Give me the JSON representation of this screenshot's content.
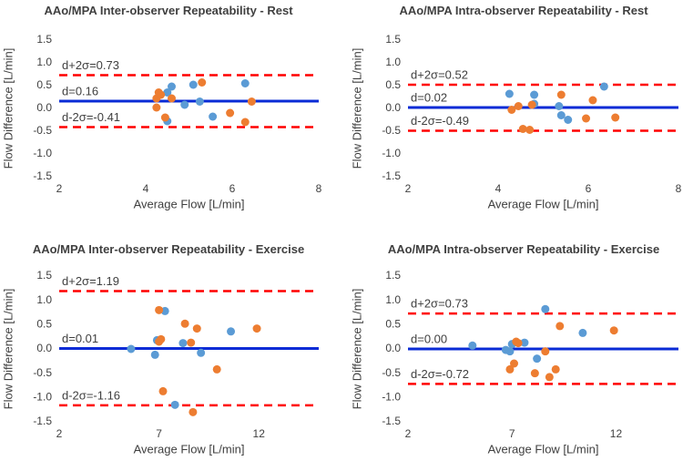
{
  "chart_data": [
    {
      "type": "scatter",
      "title": "AAo/MPA Inter-observer Repeatability - Rest",
      "xlabel": "Average Flow [L/min]",
      "ylabel": "Flow Difference [L/min]",
      "xlim": [
        2,
        8
      ],
      "xticks": [
        2,
        4,
        6,
        8
      ],
      "ylim": [
        -1.5,
        1.5
      ],
      "yticks": [
        -1.5,
        {
          "value": -1,
          "label": "-1.0"
        },
        -0.5,
        {
          "value": 0,
          "label": "0.0"
        },
        0.5,
        {
          "value": 1,
          "label": "1.0"
        },
        1.5
      ],
      "series": [
        {
          "color": "#5b9bd5",
          "x": [
            4.6,
            4.5,
            4.9,
            5.1,
            5.25,
            5.55,
            6.3,
            4.5
          ],
          "values": [
            0.48,
            0.35,
            0.08,
            0.52,
            0.15,
            -0.18,
            0.55,
            -0.28
          ]
        },
        {
          "color": "#ed7d31",
          "x": [
            4.3,
            4.25,
            4.25,
            4.45,
            4.6,
            5.3,
            5.95,
            6.3,
            6.45,
            4.35
          ],
          "values": [
            0.35,
            0.22,
            0.02,
            -0.2,
            0.22,
            0.57,
            -0.1,
            -0.3,
            0.15,
            0.3
          ]
        }
      ],
      "lines": [
        {
          "value": 0.73,
          "label": "d+2σ=0.73",
          "color": "#ff0000",
          "dashed": true
        },
        {
          "value": 0.16,
          "label": "d=0.16",
          "color": "#0a2bd6",
          "dashed": false
        },
        {
          "value": -0.41,
          "label": "d-2σ=-0.41",
          "color": "#ff0000",
          "dashed": true
        }
      ]
    },
    {
      "type": "scatter",
      "title": "AAo/MPA Intra-observer Repeatability - Rest",
      "xlabel": "Average Flow [L/min]",
      "ylabel": "Flow Difference [L/min]",
      "xlim": [
        2,
        8
      ],
      "xticks": [
        2,
        4,
        6,
        8
      ],
      "ylim": [
        -1.5,
        1.5
      ],
      "yticks": [
        -1.5,
        {
          "value": -1,
          "label": "-1.0"
        },
        -0.5,
        {
          "value": 0,
          "label": "0.0"
        },
        0.5,
        {
          "value": 1,
          "label": "1.0"
        },
        1.5
      ],
      "series": [
        {
          "color": "#5b9bd5",
          "x": [
            4.25,
            4.8,
            4.8,
            5.35,
            5.4,
            5.55,
            6.35
          ],
          "values": [
            0.32,
            0.3,
            0.1,
            0.05,
            -0.15,
            -0.25,
            0.48
          ]
        },
        {
          "color": "#ed7d31",
          "x": [
            4.3,
            4.45,
            4.55,
            4.7,
            4.75,
            5.4,
            5.95,
            6.1,
            6.6
          ],
          "values": [
            -0.03,
            0.05,
            -0.45,
            -0.47,
            0.08,
            0.3,
            -0.22,
            0.18,
            -0.2
          ]
        }
      ],
      "lines": [
        {
          "value": 0.52,
          "label": "d+2σ=0.52",
          "color": "#ff0000",
          "dashed": true
        },
        {
          "value": 0.02,
          "label": "d=0.02",
          "color": "#0a2bd6",
          "dashed": false
        },
        {
          "value": -0.49,
          "label": "d-2σ=-0.49",
          "color": "#ff0000",
          "dashed": true
        }
      ]
    },
    {
      "type": "scatter",
      "title": "AAo/MPA Inter-observer Repeatability - Exercise",
      "xlabel": "Average Flow [L/min]",
      "ylabel": "Flow Difference [L/min]",
      "xlim": [
        2,
        15
      ],
      "xticks": [
        2,
        7,
        12
      ],
      "ylim": [
        -1.5,
        1.5
      ],
      "yticks": [
        -1.5,
        {
          "value": -1,
          "label": "-1.0"
        },
        -0.5,
        {
          "value": 0,
          "label": "0.0"
        },
        0.5,
        {
          "value": 1,
          "label": "1.0"
        },
        1.5
      ],
      "series": [
        {
          "color": "#5b9bd5",
          "x": [
            5.6,
            6.8,
            6.9,
            7.3,
            7.8,
            8.2,
            9.1,
            10.6
          ],
          "values": [
            0.0,
            -0.12,
            0.18,
            0.78,
            -1.15,
            0.12,
            -0.08,
            0.36
          ]
        },
        {
          "color": "#ed7d31",
          "x": [
            7.0,
            7.0,
            7.1,
            7.2,
            8.3,
            8.6,
            8.7,
            8.9,
            9.9,
            11.9
          ],
          "values": [
            0.8,
            0.15,
            0.2,
            -0.87,
            0.52,
            0.13,
            -1.3,
            0.42,
            -0.42,
            0.42
          ]
        }
      ],
      "lines": [
        {
          "value": 1.19,
          "label": "d+2σ=1.19",
          "color": "#ff0000",
          "dashed": true
        },
        {
          "value": 0.01,
          "label": "d=0.01",
          "color": "#0a2bd6",
          "dashed": false
        },
        {
          "value": -1.16,
          "label": "d-2σ=-1.16",
          "color": "#ff0000",
          "dashed": true
        }
      ]
    },
    {
      "type": "scatter",
      "title": "AAo/MPA Intra-observer Repeatability - Exercise",
      "xlabel": "Average Flow [L/min]",
      "ylabel": "Flow Difference [L/min]",
      "xlim": [
        2,
        15
      ],
      "xticks": [
        2,
        7,
        12
      ],
      "ylim": [
        -1.5,
        1.5
      ],
      "yticks": [
        -1.5,
        {
          "value": -1,
          "label": "-1.0"
        },
        -0.5,
        {
          "value": 0,
          "label": "0.0"
        },
        0.5,
        {
          "value": 1,
          "label": "1.0"
        },
        1.5
      ],
      "series": [
        {
          "color": "#5b9bd5",
          "x": [
            5.1,
            6.7,
            6.9,
            7.0,
            7.6,
            8.2,
            8.6,
            10.4
          ],
          "values": [
            0.07,
            -0.02,
            -0.05,
            0.1,
            0.13,
            -0.2,
            0.82,
            0.33
          ]
        },
        {
          "color": "#ed7d31",
          "x": [
            6.9,
            7.1,
            7.3,
            7.2,
            8.1,
            8.6,
            8.8,
            9.1,
            9.3,
            11.9
          ],
          "values": [
            -0.42,
            -0.3,
            0.12,
            0.15,
            -0.5,
            -0.05,
            -0.58,
            -0.42,
            0.47,
            0.38
          ]
        }
      ],
      "lines": [
        {
          "value": 0.73,
          "label": "d+2σ=0.73",
          "color": "#ff0000",
          "dashed": true
        },
        {
          "value": 0.0,
          "label": "d=0.00",
          "color": "#0a2bd6",
          "dashed": false
        },
        {
          "value": -0.72,
          "label": "d-2σ=-0.72",
          "color": "#ff0000",
          "dashed": true
        }
      ]
    }
  ]
}
